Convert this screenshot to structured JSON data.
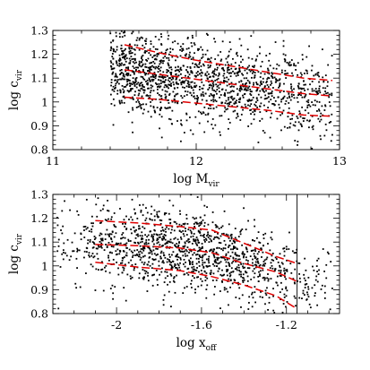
{
  "chart_data": [
    {
      "type": "scatter",
      "xlabel": {
        "main": "log M",
        "sub": "vir"
      },
      "ylabel": {
        "main": "log c",
        "sub": "vir"
      },
      "xlim": [
        11,
        13
      ],
      "ylim": [
        0.8,
        1.3
      ],
      "x_major_ticks": [
        11,
        12,
        13
      ],
      "x_tick_labels": [
        "11",
        "12",
        "13"
      ],
      "y_major_ticks": [
        0.8,
        0.9,
        1.0,
        1.1,
        1.2,
        1.3
      ],
      "y_tick_labels": [
        "0.8",
        "0.9",
        "1",
        "1.1",
        "1.2",
        "1.3"
      ],
      "marker_color": "#000000",
      "points": {
        "n": 1500,
        "x_range": [
          11.4,
          12.95
        ],
        "median_trend": [
          [
            11.4,
            1.14
          ],
          [
            12.9,
            1.02
          ]
        ],
        "scatter_dex": 0.085
      },
      "series": [
        {
          "color": "#e00000",
          "x": [
            11.5,
            11.75,
            12.0,
            12.25,
            12.5,
            12.75,
            12.95
          ],
          "y": [
            1.24,
            1.205,
            1.175,
            1.15,
            1.125,
            1.1,
            1.09
          ]
        },
        {
          "color": "#e00000",
          "x": [
            11.5,
            11.75,
            12.0,
            12.25,
            12.5,
            12.75,
            12.95
          ],
          "y": [
            1.135,
            1.115,
            1.095,
            1.075,
            1.055,
            1.035,
            1.025
          ]
        },
        {
          "color": "#e00000",
          "x": [
            11.5,
            11.75,
            12.0,
            12.25,
            12.5,
            12.75,
            12.95
          ],
          "y": [
            1.02,
            1.01,
            0.995,
            0.98,
            0.965,
            0.945,
            0.94
          ]
        }
      ]
    },
    {
      "type": "scatter",
      "xlabel": {
        "main": "log x",
        "sub": "off"
      },
      "ylabel": {
        "main": "log c",
        "sub": "vir"
      },
      "xlim": [
        -2.3,
        -0.95
      ],
      "ylim": [
        0.8,
        1.3
      ],
      "x_major_ticks": [
        -2,
        -1.6,
        -1.2
      ],
      "x_tick_labels": [
        "-2",
        "-1.6",
        "-1.2"
      ],
      "y_major_ticks": [
        0.8,
        0.9,
        1.0,
        1.1,
        1.2,
        1.3
      ],
      "y_tick_labels": [
        "0.8",
        "0.9",
        "1",
        "1.1",
        "1.2",
        "1.3"
      ],
      "vertical_line_x": -1.15,
      "marker_color": "#000000",
      "points": {
        "n": 1300,
        "x_range": [
          -2.28,
          -0.98
        ],
        "median_trend": [
          [
            -2.1,
            1.09
          ],
          [
            -1.6,
            1.07
          ],
          [
            -1.15,
            0.95
          ]
        ],
        "scatter_dex": 0.085
      },
      "series": [
        {
          "color": "#e00000",
          "x": [
            -2.1,
            -1.9,
            -1.7,
            -1.55,
            -1.4,
            -1.25,
            -1.15
          ],
          "y": [
            1.19,
            1.18,
            1.165,
            1.15,
            1.095,
            1.04,
            1.01
          ]
        },
        {
          "color": "#e00000",
          "x": [
            -2.1,
            -1.9,
            -1.7,
            -1.55,
            -1.4,
            -1.25,
            -1.15
          ],
          "y": [
            1.09,
            1.085,
            1.075,
            1.055,
            1.01,
            0.975,
            0.935
          ]
        },
        {
          "color": "#e00000",
          "x": [
            -2.1,
            -1.9,
            -1.7,
            -1.55,
            -1.4,
            -1.25,
            -1.15
          ],
          "y": [
            1.015,
            0.995,
            0.98,
            0.955,
            0.92,
            0.875,
            0.82
          ]
        }
      ]
    }
  ]
}
